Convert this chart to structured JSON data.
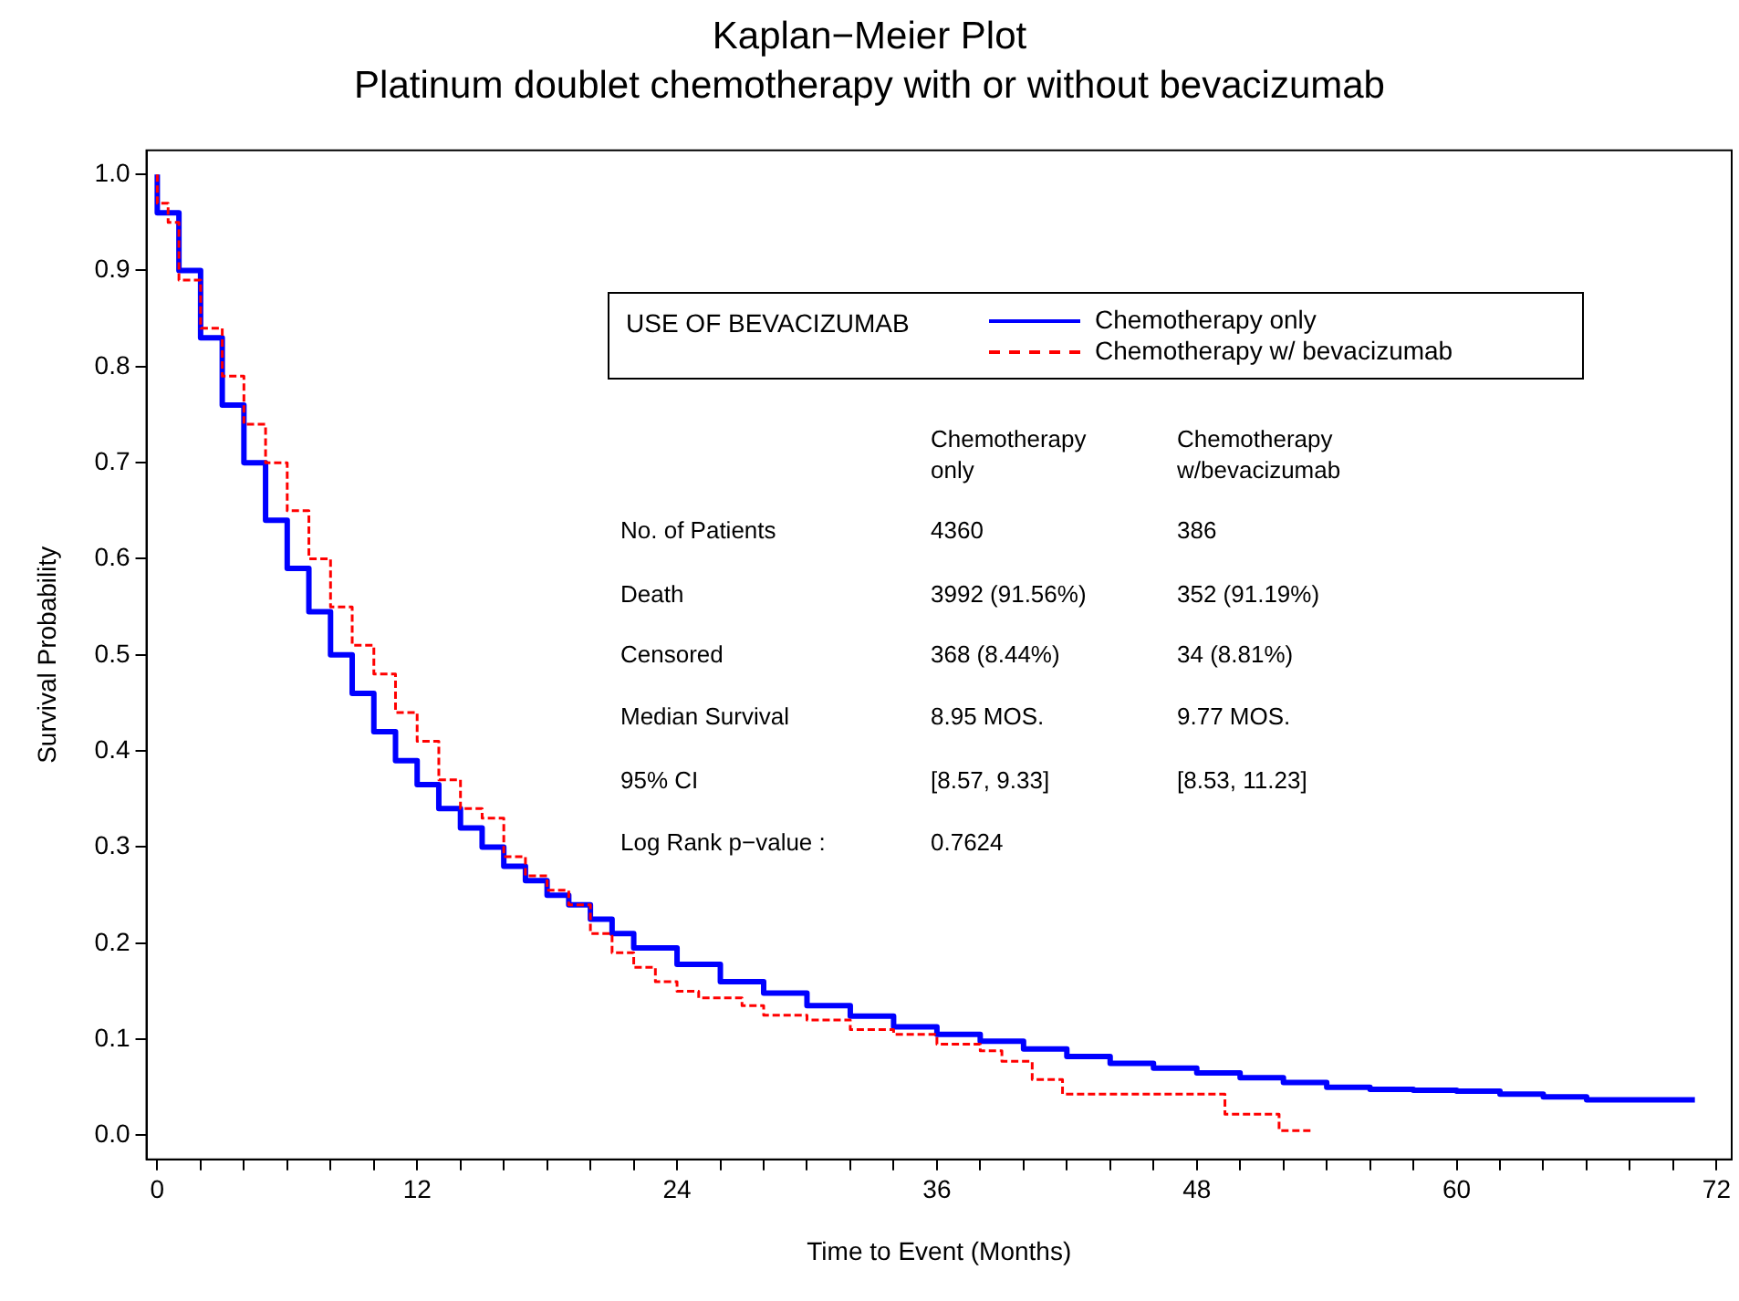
{
  "chart_data": {
    "type": "step",
    "title": "Kaplan−Meier Plot",
    "subtitle": "Platinum doublet chemotherapy with or without bevacizumab",
    "xlabel": "Time to Event (Months)",
    "ylabel": "Survival Probability",
    "legend_title": "USE OF BEVACIZUMAB",
    "legend": "top right",
    "grid": false,
    "xlim": [
      -0.5,
      72.7
    ],
    "ylim": [
      -0.025,
      1.025
    ],
    "xticks": [
      0,
      {
        "value": 2,
        "label": null
      },
      {
        "value": 4,
        "label": null
      },
      {
        "value": 6,
        "label": null
      },
      {
        "value": 8,
        "label": null
      },
      {
        "value": 10,
        "label": null
      },
      12,
      {
        "value": 14,
        "label": null
      },
      {
        "value": 16,
        "label": null
      },
      {
        "value": 18,
        "label": null
      },
      {
        "value": 20,
        "label": null
      },
      {
        "value": 22,
        "label": null
      },
      24,
      {
        "value": 26,
        "label": null
      },
      {
        "value": 28,
        "label": null
      },
      {
        "value": 30,
        "label": null
      },
      {
        "value": 32,
        "label": null
      },
      {
        "value": 34,
        "label": null
      },
      36,
      {
        "value": 38,
        "label": null
      },
      {
        "value": 40,
        "label": null
      },
      {
        "value": 42,
        "label": null
      },
      {
        "value": 44,
        "label": null
      },
      {
        "value": 46,
        "label": null
      },
      48,
      {
        "value": 50,
        "label": null
      },
      {
        "value": 52,
        "label": null
      },
      {
        "value": 54,
        "label": null
      },
      {
        "value": 56,
        "label": null
      },
      {
        "value": 58,
        "label": null
      },
      60,
      {
        "value": 62,
        "label": null
      },
      {
        "value": 64,
        "label": null
      },
      {
        "value": 66,
        "label": null
      },
      {
        "value": 68,
        "label": null
      },
      {
        "value": 70,
        "label": null
      },
      72
    ],
    "yticks": [
      {
        "value": 0,
        "label": "0.0"
      },
      0.1,
      0.2,
      0.3,
      0.4,
      0.5,
      0.6,
      0.7,
      0.8,
      0.9,
      {
        "value": 1,
        "label": "1.0"
      }
    ],
    "series": [
      {
        "name": "Chemotherapy only",
        "color": "#0000ff",
        "line_style": "solid",
        "x": [
          0,
          1,
          2,
          3,
          4,
          5,
          6,
          7,
          8,
          9,
          10,
          11,
          12,
          13,
          14,
          15,
          16,
          17,
          18,
          19,
          20,
          21,
          22,
          24,
          26,
          28,
          30,
          32,
          34,
          36,
          38,
          40,
          42,
          44,
          46,
          48,
          50,
          52,
          54,
          56,
          58,
          60,
          62,
          64,
          66,
          66.5,
          71
        ],
        "values": [
          1.0,
          0.96,
          0.9,
          0.83,
          0.76,
          0.7,
          0.64,
          0.59,
          0.545,
          0.5,
          0.46,
          0.42,
          0.39,
          0.365,
          0.34,
          0.32,
          0.3,
          0.28,
          0.265,
          0.25,
          0.24,
          0.225,
          0.21,
          0.195,
          0.178,
          0.16,
          0.148,
          0.135,
          0.124,
          0.113,
          0.105,
          0.098,
          0.09,
          0.082,
          0.075,
          0.07,
          0.065,
          0.06,
          0.055,
          0.05,
          0.048,
          0.047,
          0.046,
          0.043,
          0.04,
          0.037,
          0.037
        ]
      },
      {
        "name": "Chemotherapy  w/ bevacizumab",
        "color": "#ff0000",
        "line_style": "dashed",
        "x": [
          0,
          0.5,
          1,
          2,
          3,
          4,
          5,
          6,
          7,
          8,
          9,
          10,
          11,
          12,
          13,
          14,
          15,
          16,
          17,
          18,
          19,
          20,
          21,
          22,
          23,
          24,
          25,
          27,
          28,
          30,
          32,
          34,
          36,
          38,
          39,
          40.4,
          41.8,
          49.3,
          51.8,
          53.4
        ],
        "values": [
          1.0,
          0.97,
          0.95,
          0.89,
          0.84,
          0.79,
          0.74,
          0.7,
          0.65,
          0.6,
          0.55,
          0.51,
          0.48,
          0.44,
          0.41,
          0.37,
          0.34,
          0.33,
          0.29,
          0.27,
          0.255,
          0.24,
          0.21,
          0.19,
          0.175,
          0.16,
          0.15,
          0.143,
          0.135,
          0.125,
          0.12,
          0.11,
          0.105,
          0.095,
          0.088,
          0.077,
          0.058,
          0.043,
          0.022,
          0.005
        ]
      }
    ],
    "annotations": [
      "Chemotherapy\nonly",
      "Chemotherapy\nw/bevacizumab",
      "No. of Patients",
      "4360",
      "386",
      "Death",
      "3992 (91.56%)",
      "352 (91.19%)",
      "Censored",
      "368 (8.44%)",
      "34 (8.81%)",
      "Median Survival",
      "8.95 MOS.",
      "9.77 MOS.",
      "95% CI",
      "[8.57, 9.33]",
      "[8.53, 11.23]",
      "Log Rank p−value :",
      "0.7624"
    ]
  }
}
